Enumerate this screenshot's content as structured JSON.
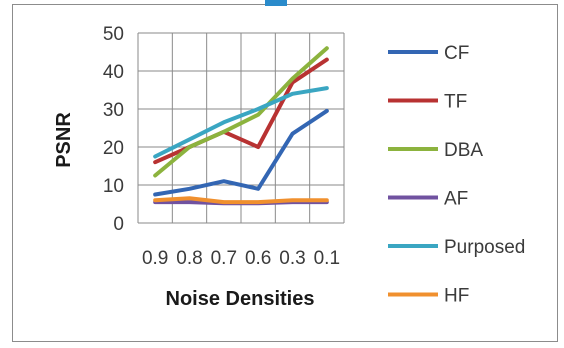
{
  "chart_data": {
    "type": "line",
    "title": "",
    "xlabel": "Noise Densities",
    "ylabel": "PSNR",
    "categories": [
      "0.9",
      "0.8",
      "0.7",
      "0.6",
      "0.3",
      "0.1"
    ],
    "ylim": [
      0,
      50
    ],
    "yticks": [
      0,
      10,
      20,
      30,
      40,
      50
    ],
    "grid": true,
    "legend_position": "right",
    "series": [
      {
        "name": "CF",
        "color": "#3366b3",
        "values": [
          7.5,
          9,
          11,
          9,
          23.5,
          29.5
        ]
      },
      {
        "name": "TF",
        "color": "#b83232",
        "values": [
          16,
          20,
          24,
          20,
          37,
          43
        ]
      },
      {
        "name": "DBA",
        "color": "#8cb33e",
        "values": [
          12.5,
          20,
          24,
          28.5,
          38,
          46
        ]
      },
      {
        "name": "AF",
        "color": "#7052a0",
        "values": [
          5.5,
          5.5,
          5.2,
          5.2,
          5.5,
          5.5
        ]
      },
      {
        "name": "Purposed",
        "color": "#3aa6c2",
        "values": [
          17.5,
          22,
          26.5,
          30,
          34,
          35.5
        ]
      },
      {
        "name": "HF",
        "color": "#f0902e",
        "values": [
          6,
          6.5,
          5.5,
          5.5,
          6,
          6
        ]
      }
    ]
  }
}
